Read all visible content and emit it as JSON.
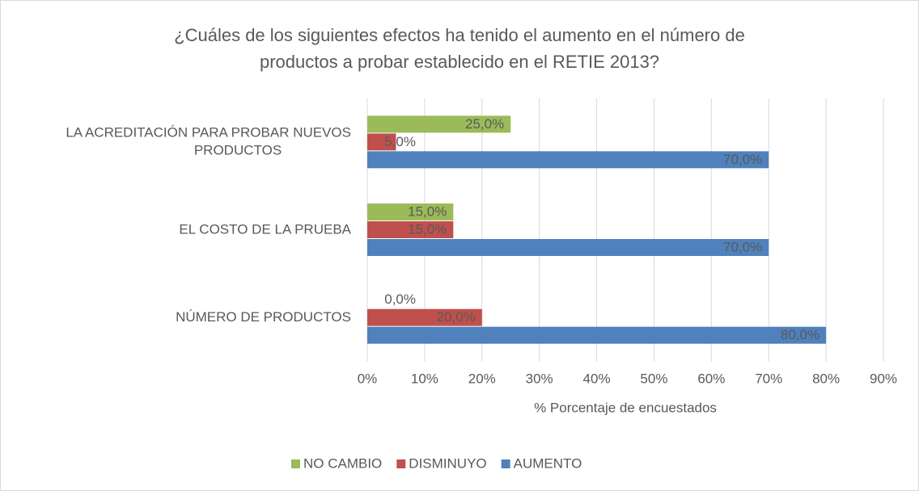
{
  "chart_data": {
    "type": "hbar",
    "title": [
      "¿Cuáles de los siguientes efectos ha tenido el aumento en el número de",
      "productos a probar establecido en el RETIE 2013?"
    ],
    "x_label": "% Porcentaje de encuestados",
    "categories": [
      "LA ACREDITACIÓN PARA PROBAR NUEVOS PRODUCTOS",
      "EL COSTO DE LA PRUEBA",
      "NÚMERO DE PRODUCTOS"
    ],
    "series": [
      {
        "name": "NO CAMBIO",
        "color": "#9bbb59",
        "values": [
          25,
          15,
          0
        ],
        "value_labels": [
          "25,0%",
          "15,0%",
          "0,0%"
        ]
      },
      {
        "name": "DISMINUYO",
        "color": "#c0504d",
        "values": [
          5,
          15,
          20
        ],
        "value_labels": [
          "5,0%",
          "15,0%",
          "20,0%"
        ]
      },
      {
        "name": "AUMENTO",
        "color": "#4f81bd",
        "values": [
          70,
          70,
          80
        ],
        "value_labels": [
          "70,0%",
          "70,0%",
          "80,0%"
        ]
      }
    ],
    "xlim": [
      0,
      90
    ],
    "xticks": [
      {
        "value": 0,
        "label": "0%"
      },
      {
        "value": 10,
        "label": "10%"
      },
      {
        "value": 20,
        "label": "20%"
      },
      {
        "value": 30,
        "label": "30%"
      },
      {
        "value": 40,
        "label": "40%"
      },
      {
        "value": 50,
        "label": "50%"
      },
      {
        "value": 60,
        "label": "60%"
      },
      {
        "value": 70,
        "label": "70%"
      },
      {
        "value": 80,
        "label": "80%"
      },
      {
        "value": 90,
        "label": "90%"
      }
    ],
    "grid": true,
    "legend": "bottom"
  }
}
